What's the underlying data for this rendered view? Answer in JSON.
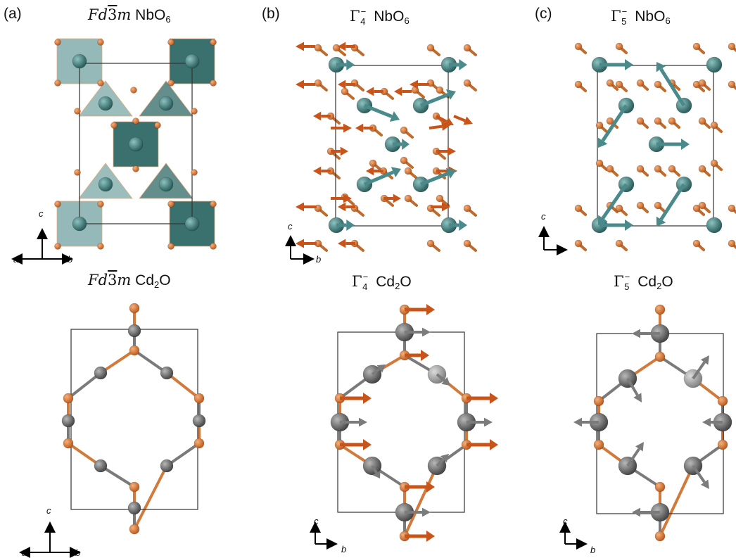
{
  "panels": {
    "a": {
      "letter": "(a)"
    },
    "b": {
      "letter": "(b)"
    },
    "c": {
      "letter": "(c)"
    }
  },
  "titles": {
    "a_top": {
      "sym": "Fd",
      "bar": "3",
      "m": "m",
      "compound": "NbO",
      "sub": "6"
    },
    "b_top": {
      "gamma": "Γ",
      "sup": "−",
      "index": "4",
      "compound": "NbO",
      "sub": "6"
    },
    "c_top": {
      "gamma": "Γ",
      "sup": "−",
      "index": "5",
      "compound": "NbO",
      "sub": "6"
    },
    "a_bot": {
      "sym": "Fd",
      "bar": "3",
      "m": "m",
      "compound": "Cd",
      "sub": "2",
      "tail": "O"
    },
    "b_bot": {
      "gamma": "Γ",
      "sup": "−",
      "index": "4",
      "compound": "Cd",
      "sub": "2",
      "tail": "O"
    },
    "c_bot": {
      "gamma": "Γ",
      "sup": "−",
      "index": "5",
      "compound": "Cd",
      "sub": "2",
      "tail": "O"
    }
  },
  "axes": {
    "a": "a",
    "b": "b",
    "c": "c"
  },
  "colors": {
    "nb": "#3e7f7e",
    "nb_dark": "#245756",
    "octa_dark": "#2f6866",
    "octa_light": "#79a8a6",
    "oxygen": "#e07a2e",
    "oxygen_dark": "#b9561a",
    "cd": "#6d6d6d",
    "cd_light": "#9a9a9a",
    "arrow_o": "#c9541a",
    "arrow_nb": "#4a8a8a",
    "arrow_cd": "#7b7b7b",
    "cell": "#333333"
  }
}
